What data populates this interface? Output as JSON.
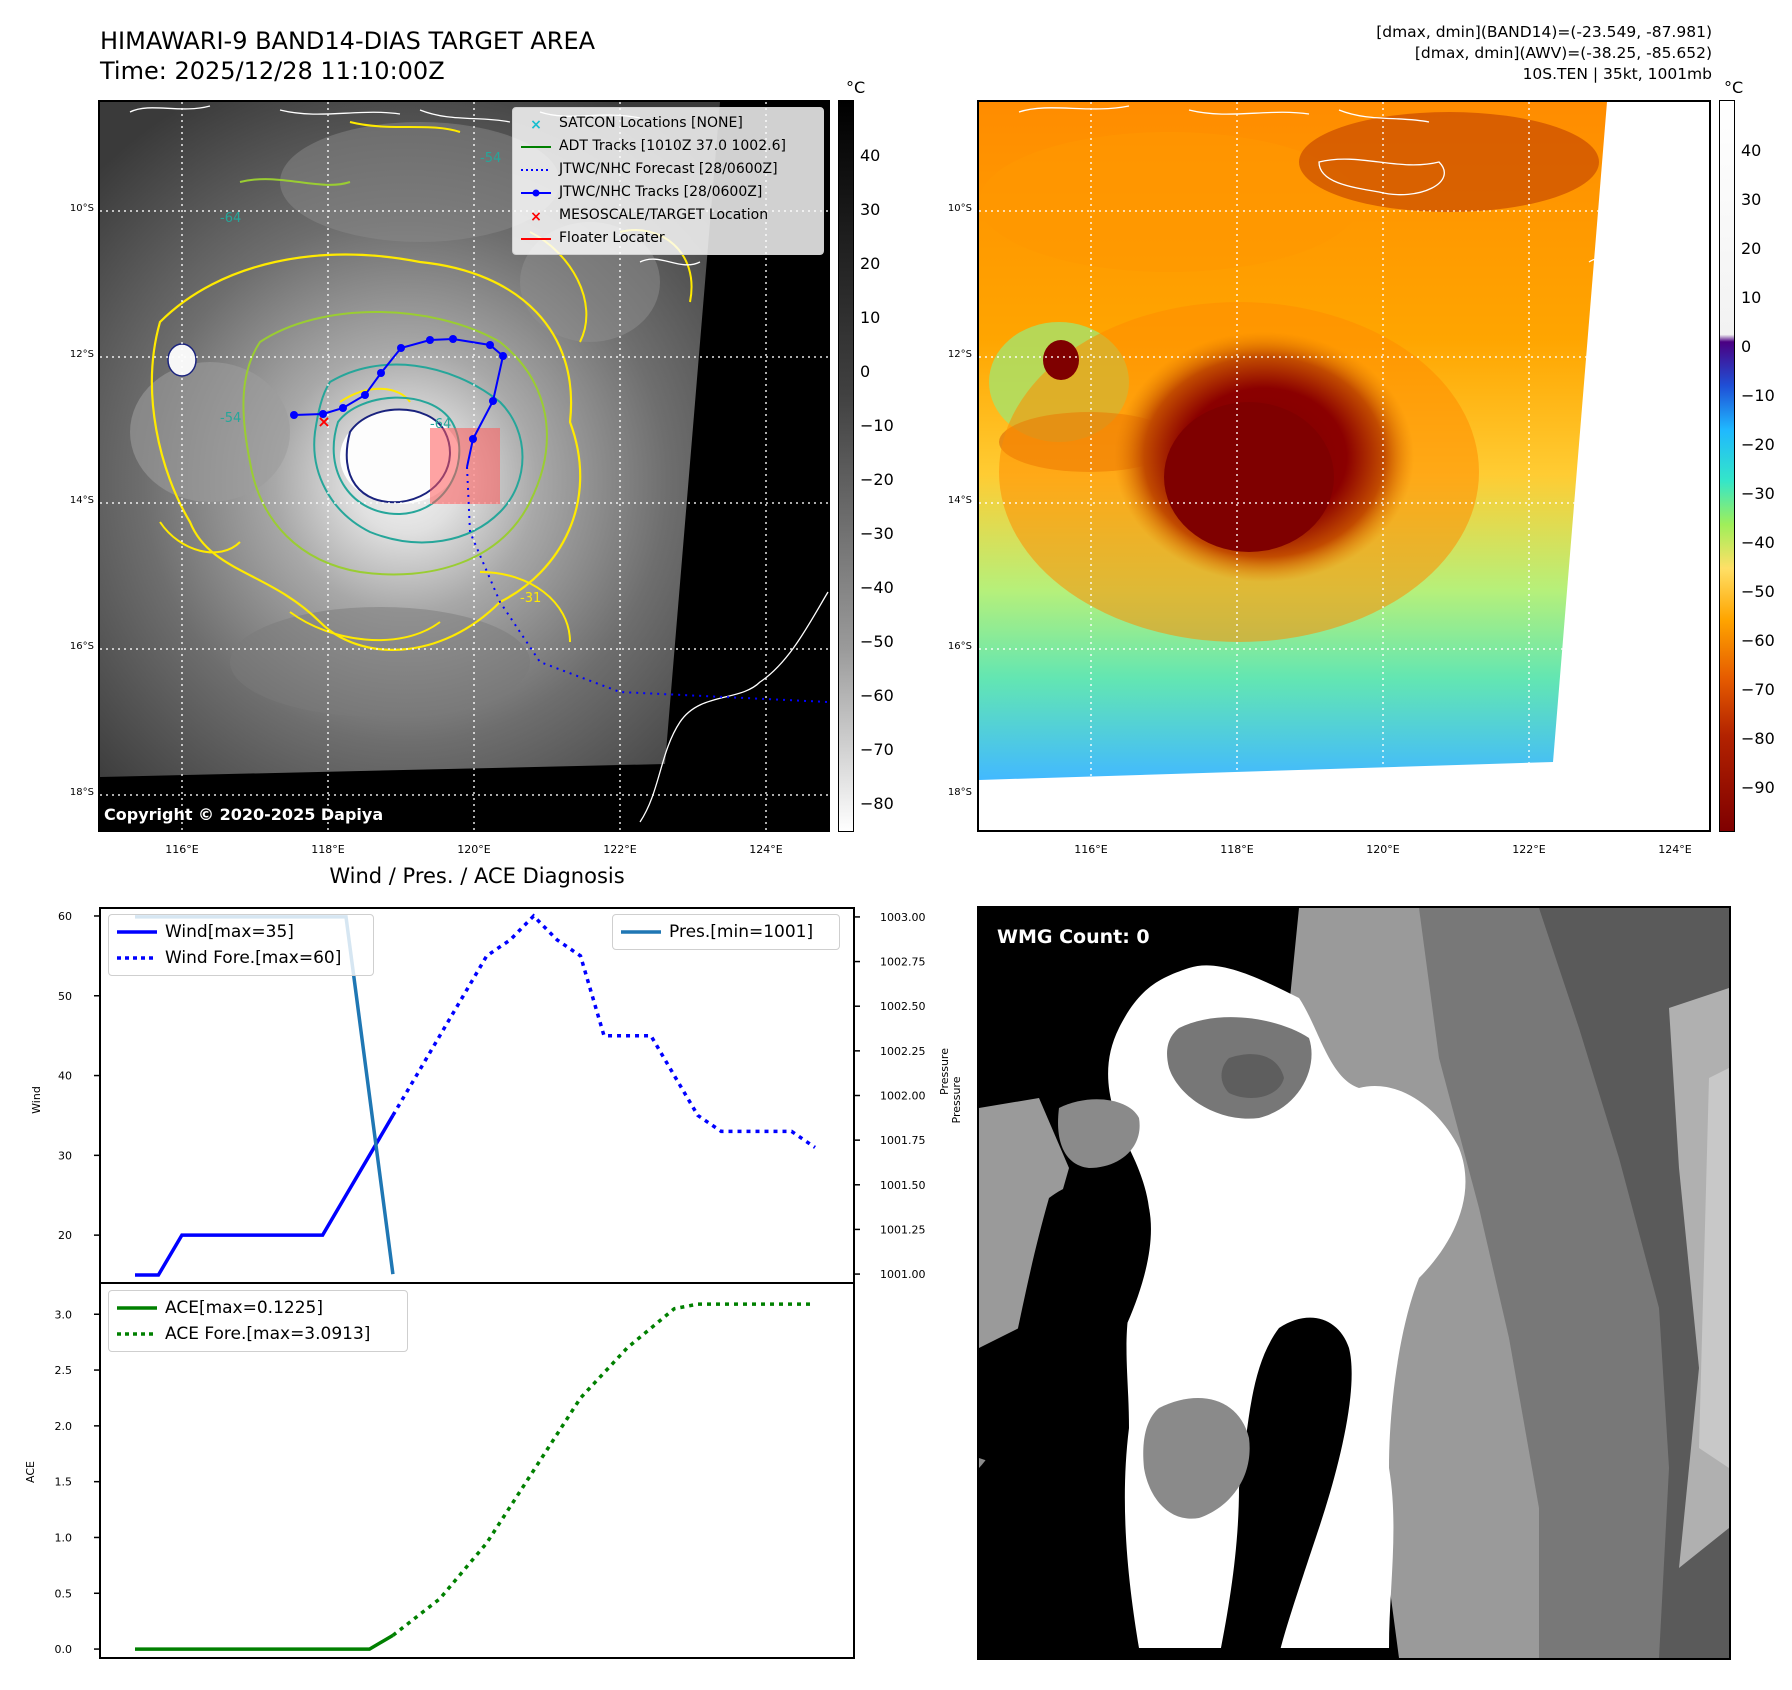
{
  "header": {
    "title_line1": "HIMAWARI-9 BAND14-DIAS TARGET AREA",
    "title_line2": "Time: 2025/12/28 11:10:00Z",
    "info_line1": "[dmax, dmin](BAND14)=(-23.549, -87.981)",
    "info_line2": "[dmax, dmin](AWV)=(-38.25, -85.652)",
    "info_line3": "10S.TEN | 35kt, 1001mb"
  },
  "map_axes": {
    "lat_labels": [
      "10°S",
      "12°S",
      "14°S",
      "16°S",
      "18°S"
    ],
    "lon_labels": [
      "116°E",
      "118°E",
      "120°E",
      "122°E",
      "124°E"
    ]
  },
  "ir_panel": {
    "copyright": "Copyright © 2020-2025 Dapiya",
    "colorbar_unit": "°C",
    "colorbar_ticks": [
      "40",
      "30",
      "20",
      "10",
      "0",
      "−10",
      "−20",
      "−30",
      "−40",
      "−50",
      "−60",
      "−70",
      "−80"
    ],
    "contour_labels": [
      "-54",
      "-64",
      "-54",
      "-64",
      "-31"
    ],
    "legend": [
      {
        "label": "SATCON Locations [NONE]",
        "color": "#17becf",
        "style": "x"
      },
      {
        "label": "ADT Tracks [1010Z 37.0 1002.6]",
        "color": "#008000",
        "style": "line"
      },
      {
        "label": "JTWC/NHC Forecast [28/0600Z]",
        "color": "#0000ff",
        "style": "dotted"
      },
      {
        "label": "JTWC/NHC Tracks [28/0600Z]",
        "color": "#0000ff",
        "style": "line-dot"
      },
      {
        "label": "MESOSCALE/TARGET Location",
        "color": "#ff0000",
        "style": "x"
      },
      {
        "label": "Floater Locater",
        "color": "#ff0000",
        "style": "line"
      }
    ]
  },
  "color_panel": {
    "colorbar_unit": "°C",
    "colorbar_ticks": [
      "40",
      "30",
      "20",
      "10",
      "0",
      "−10",
      "−20",
      "−30",
      "−40",
      "−50",
      "−60",
      "−70",
      "−80",
      "−90"
    ]
  },
  "diagnosis": {
    "title": "Wind / Pres. / ACE Diagnosis",
    "legend_wind": "Wind[max=35]",
    "legend_wind_fore": "Wind Fore.[max=60]",
    "legend_pres": "Pres.[min=1001]",
    "legend_ace": "ACE[max=0.1225]",
    "legend_ace_fore": "ACE Fore.[max=3.0913]",
    "ylabel_wind": "Wind",
    "ylabel_pres": "Pressure",
    "ylabel_ace": "ACE"
  },
  "wmg": {
    "label": "WMG Count: 0"
  },
  "chart_data": [
    {
      "type": "line",
      "title": "Wind / Pres. / ACE Diagnosis",
      "ylabel": "Wind",
      "ylim": [
        14,
        61
      ],
      "yticks": [
        20,
        30,
        40,
        50,
        60
      ],
      "series": [
        {
          "name": "Wind[max=35]",
          "color": "#0000ff",
          "style": "solid",
          "x": [
            0,
            1,
            2,
            3,
            4,
            5,
            6,
            7,
            8,
            9,
            10,
            11
          ],
          "values": [
            15,
            15,
            20,
            20,
            20,
            20,
            20,
            20,
            20,
            25,
            30,
            35
          ]
        },
        {
          "name": "Wind Fore.[max=60]",
          "color": "#0000ff",
          "style": "dotted",
          "x": [
            11,
            12,
            13,
            14,
            15,
            16,
            17,
            18,
            19,
            20,
            21,
            22,
            23,
            24,
            25,
            26,
            27,
            28,
            29
          ],
          "values": [
            35,
            40,
            45,
            50,
            55,
            57,
            60,
            57,
            55,
            45,
            45,
            45,
            40,
            35,
            33,
            33,
            33,
            33,
            31
          ]
        }
      ]
    },
    {
      "type": "line",
      "ylabel": "Pressure",
      "ylim": [
        1000.95,
        1003.05
      ],
      "yticks": [
        1001.0,
        1001.25,
        1001.5,
        1001.75,
        1002.0,
        1002.25,
        1002.5,
        1002.75,
        1003.0
      ],
      "series": [
        {
          "name": "Pres.[min=1001]",
          "color": "#1f77b4",
          "style": "solid",
          "x": [
            0,
            9,
            11
          ],
          "values": [
            1003.0,
            1003.0,
            1001.0
          ]
        }
      ]
    },
    {
      "type": "line",
      "ylabel": "ACE",
      "ylim": [
        -0.08,
        3.28
      ],
      "yticks": [
        0.0,
        0.5,
        1.0,
        1.5,
        2.0,
        2.5,
        3.0
      ],
      "series": [
        {
          "name": "ACE[max=0.1225]",
          "color": "#008000",
          "style": "solid",
          "x": [
            0,
            10,
            11
          ],
          "values": [
            0.0,
            0.0,
            0.1225
          ]
        },
        {
          "name": "ACE Fore.[max=3.0913]",
          "color": "#008000",
          "style": "dotted",
          "x": [
            11,
            13,
            15,
            17,
            19,
            21,
            23,
            24,
            26,
            28,
            29
          ],
          "values": [
            0.1225,
            0.45,
            0.95,
            1.6,
            2.25,
            2.7,
            3.05,
            3.0913,
            3.0913,
            3.0913,
            3.0913
          ]
        }
      ]
    }
  ]
}
